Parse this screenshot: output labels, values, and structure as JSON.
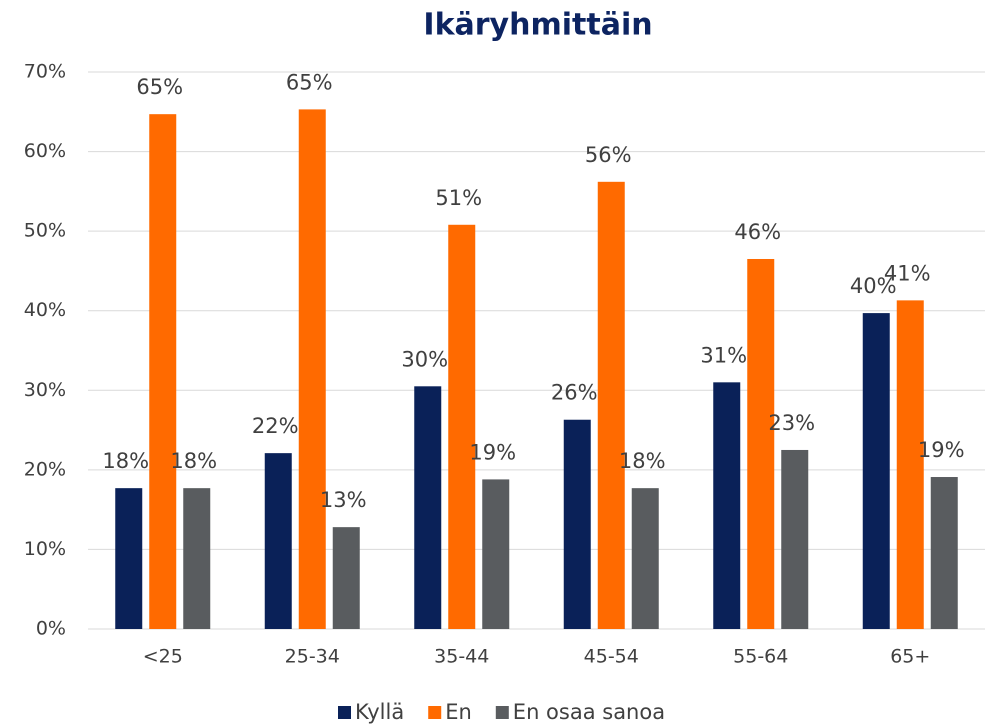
{
  "chart_data": {
    "type": "bar",
    "title": "Ikäryhmittäin",
    "categories": [
      "<25",
      "25-34",
      "35-44",
      "45-54",
      "55-64",
      "65+"
    ],
    "series": [
      {
        "name": "Kyllä",
        "color": "#0a2158",
        "values": [
          17.7,
          22.1,
          30.5,
          26.3,
          31.0,
          39.7
        ],
        "value_labels": [
          "18%",
          "22%",
          "30%",
          "26%",
          "31%",
          "40%"
        ]
      },
      {
        "name": "En",
        "color": "#ff6a00",
        "values": [
          64.7,
          65.3,
          50.8,
          56.2,
          46.5,
          41.3
        ],
        "value_labels": [
          "65%",
          "65%",
          "51%",
          "56%",
          "46%",
          "41%"
        ]
      },
      {
        "name": "En osaa sanoa",
        "color": "#595c5f",
        "values": [
          17.7,
          12.8,
          18.8,
          17.7,
          22.5,
          19.1
        ],
        "value_labels": [
          "18%",
          "13%",
          "19%",
          "18%",
          "23%",
          "19%"
        ]
      }
    ],
    "ylim": [
      0,
      70
    ],
    "yticks": [
      {
        "value": 0,
        "label": "0%"
      },
      {
        "value": 10,
        "label": "10%"
      },
      {
        "value": 20,
        "label": "20%"
      },
      {
        "value": 30,
        "label": "30%"
      },
      {
        "value": 40,
        "label": "40%"
      },
      {
        "value": 50,
        "label": "50%"
      },
      {
        "value": 60,
        "label": "60%"
      },
      {
        "value": 70,
        "label": "70%"
      }
    ],
    "grid": true,
    "legend": "bottom"
  }
}
